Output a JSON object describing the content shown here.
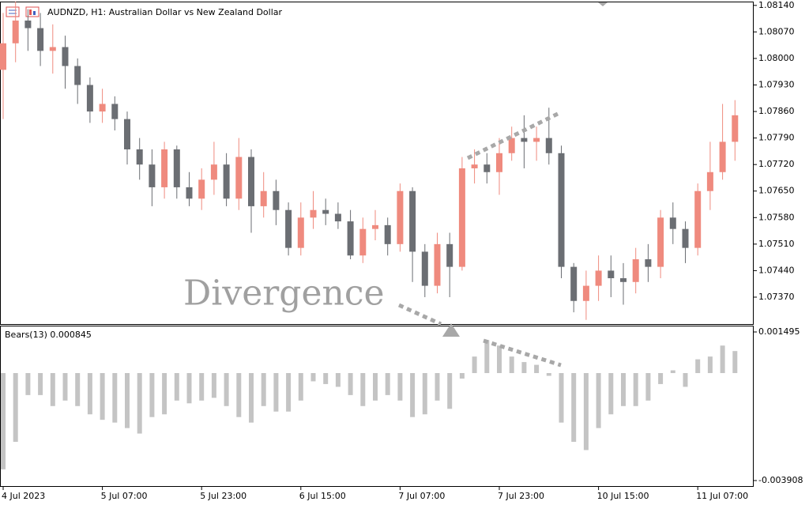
{
  "chart_data": [
    {
      "type": "candlestick",
      "title": "AUDNZD, H1:  Australian Dollar vs New Zealand Dollar",
      "annotation": "Divergence",
      "up_color": "#ef8a7e",
      "down_color": "#6b6e73",
      "categories": [
        "4 Jul 2023",
        null,
        null,
        null,
        null,
        null,
        null,
        null,
        "5 Jul 07:00",
        null,
        null,
        null,
        null,
        null,
        null,
        null,
        "5 Jul 23:00",
        null,
        null,
        null,
        null,
        null,
        null,
        null,
        "6 Jul 15:00",
        null,
        null,
        null,
        null,
        null,
        null,
        null,
        "7 Jul 07:00",
        null,
        null,
        null,
        null,
        null,
        null,
        null,
        "7 Jul 23:00",
        null,
        null,
        null,
        null,
        null,
        null,
        null,
        "10 Jul 15:00",
        null,
        null,
        null,
        null,
        null,
        null,
        null,
        "11 Jul 07:00",
        null,
        null,
        null
      ],
      "open": [
        1.0797,
        1.0804,
        1.081,
        1.0808,
        1.0802,
        1.0803,
        1.0798,
        1.0793,
        1.0786,
        1.0788,
        1.0784,
        1.0776,
        1.0772,
        1.0766,
        1.0776,
        1.0766,
        1.0763,
        1.0768,
        1.0772,
        1.0763,
        1.0774,
        1.0761,
        1.0765,
        1.076,
        1.075,
        1.0758,
        1.076,
        1.0759,
        1.0757,
        1.0748,
        1.0755,
        1.0756,
        1.0751,
        1.0765,
        1.0749,
        1.074,
        1.0751,
        1.0745,
        1.0771,
        1.0772,
        1.077,
        1.0775,
        1.0779,
        1.0778,
        1.0779,
        1.0775,
        1.0745,
        1.0736,
        1.074,
        1.0744,
        1.0742,
        1.0741,
        1.0747,
        1.0745,
        1.0758,
        1.0755,
        1.075,
        1.0765,
        1.077,
        1.0778
      ],
      "high": [
        1.0812,
        1.0815,
        1.0813,
        1.0812,
        1.0809,
        1.0806,
        1.08,
        1.0795,
        1.0792,
        1.079,
        1.0786,
        1.0779,
        1.0776,
        1.0778,
        1.0777,
        1.077,
        1.0771,
        1.0778,
        1.0775,
        1.0779,
        1.0776,
        1.077,
        1.0768,
        1.0762,
        1.0762,
        1.0765,
        1.0763,
        1.0762,
        1.076,
        1.0758,
        1.076,
        1.0758,
        1.0767,
        1.0766,
        1.0751,
        1.0754,
        1.0754,
        1.0774,
        1.0776,
        1.0775,
        1.0779,
        1.0782,
        1.0785,
        1.0782,
        1.0787,
        1.0777,
        1.0746,
        1.0744,
        1.0748,
        1.0748,
        1.0746,
        1.075,
        1.0751,
        1.076,
        1.0762,
        1.0757,
        1.0767,
        1.0778,
        1.0788,
        1.0789
      ],
      "low": [
        1.0784,
        1.0799,
        1.0802,
        1.0798,
        1.0796,
        1.0792,
        1.0788,
        1.0783,
        1.0783,
        1.0781,
        1.0772,
        1.0768,
        1.0761,
        1.0763,
        1.0763,
        1.0761,
        1.076,
        1.0764,
        1.0761,
        1.076,
        1.0754,
        1.0758,
        1.0756,
        1.0748,
        1.0748,
        1.0755,
        1.0756,
        1.0755,
        1.0747,
        1.0746,
        1.0752,
        1.0748,
        1.0749,
        1.0741,
        1.0737,
        1.0738,
        1.0737,
        1.0744,
        1.0767,
        1.0767,
        1.0764,
        1.0773,
        1.0771,
        1.0773,
        1.0772,
        1.0742,
        1.0733,
        1.0731,
        1.0736,
        1.0737,
        1.0735,
        1.0738,
        1.0741,
        1.0742,
        1.0751,
        1.0746,
        1.0748,
        1.076,
        1.0768,
        1.0773
      ],
      "close": [
        1.0804,
        1.081,
        1.0808,
        1.0802,
        1.0803,
        1.0798,
        1.0793,
        1.0786,
        1.0788,
        1.0784,
        1.0776,
        1.0772,
        1.0766,
        1.0776,
        1.0766,
        1.0763,
        1.0768,
        1.0772,
        1.0763,
        1.0774,
        1.0761,
        1.0765,
        1.076,
        1.075,
        1.0758,
        1.076,
        1.0759,
        1.0757,
        1.0748,
        1.0755,
        1.0756,
        1.0751,
        1.0765,
        1.0749,
        1.074,
        1.0751,
        1.0745,
        1.0771,
        1.0772,
        1.077,
        1.0775,
        1.0779,
        1.0778,
        1.0779,
        1.0775,
        1.0745,
        1.0736,
        1.074,
        1.0744,
        1.0742,
        1.0741,
        1.0747,
        1.0745,
        1.0758,
        1.0755,
        1.075,
        1.0765,
        1.077,
        1.0778,
        1.0785
      ],
      "ylim": [
        1.07299,
        1.08148
      ],
      "yticks": [
        {
          "value": 1.0814,
          "label": "1.08140"
        },
        {
          "value": 1.0807,
          "label": "1.08070"
        },
        {
          "value": 1.08,
          "label": "1.08000"
        },
        {
          "value": 1.0793,
          "label": "1.07930"
        },
        {
          "value": 1.0786,
          "label": "1.07860"
        },
        {
          "value": 1.0779,
          "label": "1.07790"
        },
        {
          "value": 1.0772,
          "label": "1.07720"
        },
        {
          "value": 1.0765,
          "label": "1.07650"
        },
        {
          "value": 1.0758,
          "label": "1.07580"
        },
        {
          "value": 1.0751,
          "label": "1.07510"
        },
        {
          "value": 1.0744,
          "label": "1.07440"
        },
        {
          "value": 1.0737,
          "label": "1.07370"
        }
      ]
    },
    {
      "type": "bar",
      "title": "Bears(13) 0.000845",
      "color": "#c4c4c4",
      "values": [
        -0.0035,
        -0.0025,
        -0.0008,
        -0.0008,
        -0.0012,
        -0.001,
        -0.0012,
        -0.0015,
        -0.0017,
        -0.0018,
        -0.002,
        -0.0022,
        -0.0016,
        -0.0015,
        -0.001,
        -0.0011,
        -0.001,
        -0.0009,
        -0.0012,
        -0.0016,
        -0.0018,
        -0.0012,
        -0.0014,
        -0.0014,
        -0.001,
        -0.0003,
        -0.0004,
        -0.0005,
        -0.0008,
        -0.0012,
        -0.001,
        -0.0008,
        -0.001,
        -0.0016,
        -0.0015,
        -0.001,
        -0.0013,
        -0.0002,
        0.0006,
        0.0012,
        0.001,
        0.0006,
        0.0004,
        0.0003,
        -0.0001,
        -0.0018,
        -0.0025,
        -0.0028,
        -0.002,
        -0.0015,
        -0.0012,
        -0.0012,
        -0.001,
        -0.0004,
        0.0001,
        -0.0005,
        0.0005,
        0.0006,
        0.001,
        0.0008
      ],
      "ylim": [
        -0.004109,
        0.001696
      ],
      "yticks": [
        0.001495,
        -0.003908
      ]
    }
  ]
}
